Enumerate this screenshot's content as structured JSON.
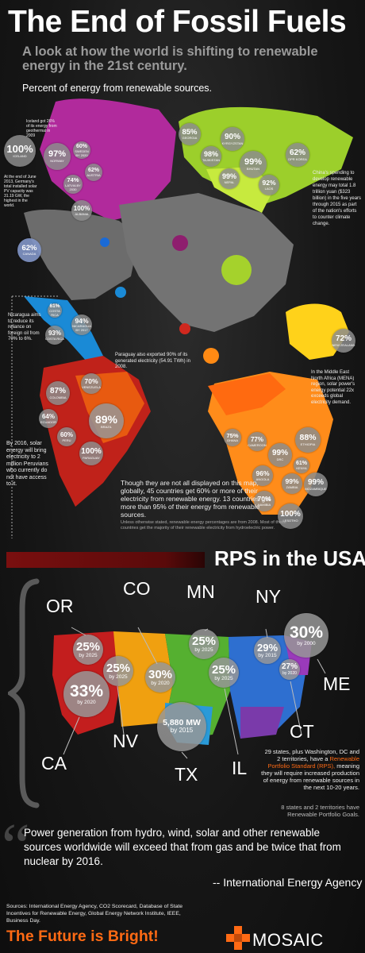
{
  "header": {
    "title": "The End of Fossil Fuels",
    "subtitle": "A look at how the world is shifting to renewable energy in the 21st century.",
    "section_label": "Percent of energy from renewable sources."
  },
  "colors": {
    "europe": "#b12a9c",
    "asia": "#b5e23a",
    "americas_central": "#1a8ad6",
    "south_america": "#d0281e",
    "africa": "#ff9a1a",
    "oceania": "#ffd21a",
    "grey_land": "#707070",
    "accent_orange": "#ff6a14"
  },
  "bubbles": [
    {
      "pct": "100%",
      "country": "ICELAND"
    },
    {
      "pct": "97%",
      "country": "NORWAY"
    },
    {
      "pct": "60%",
      "country": "SWEDEN BY 2020"
    },
    {
      "pct": "62%",
      "country": "AUSTRIA"
    },
    {
      "pct": "74%",
      "country": "LATVIA BY 2030"
    },
    {
      "pct": "100%",
      "country": "ALBANIA"
    },
    {
      "pct": "85%",
      "country": "GEORGIA"
    },
    {
      "pct": "90%",
      "country": "KYRGYZSTAN"
    },
    {
      "pct": "98%",
      "country": "TAJIKISTAN"
    },
    {
      "pct": "99%",
      "country": "BHUTAN"
    },
    {
      "pct": "99%",
      "country": "NEPAL"
    },
    {
      "pct": "62%",
      "country": "DPR KOREA"
    },
    {
      "pct": "92%",
      "country": "LAOS"
    },
    {
      "pct": "62%",
      "country": "CANADA"
    },
    {
      "pct": "61%",
      "country": "COSTA RICA"
    },
    {
      "pct": "94%",
      "country": "NICARAGUA BY 2017"
    },
    {
      "pct": "93%",
      "country": "COSTA RICA"
    },
    {
      "pct": "87%",
      "country": "COLOMBIA"
    },
    {
      "pct": "70%",
      "country": "VENEZUELA"
    },
    {
      "pct": "64%",
      "country": "ECUADOR"
    },
    {
      "pct": "60%",
      "country": "PERU"
    },
    {
      "pct": "89%",
      "country": "BRAZIL"
    },
    {
      "pct": "100%",
      "country": "PARAGUAY"
    },
    {
      "pct": "72%",
      "country": "NEW ZEALAND"
    },
    {
      "pct": "75%",
      "country": "GHANA"
    },
    {
      "pct": "77%",
      "country": "CAMEROON"
    },
    {
      "pct": "88%",
      "country": "ETHIOPIA"
    },
    {
      "pct": "99%",
      "country": "DRC"
    },
    {
      "pct": "61%",
      "country": "KENYA"
    },
    {
      "pct": "96%",
      "country": "ANGOLA"
    },
    {
      "pct": "99%",
      "country": "ZAMBIA"
    },
    {
      "pct": "99%",
      "country": "MOZAMBIQUE"
    },
    {
      "pct": "70%",
      "country": "NAMIBIA"
    },
    {
      "pct": "100%",
      "country": "LESOTHO"
    }
  ],
  "notes": {
    "iceland": "Iceland got 26% of its energy from geothermal in 2009",
    "germany": "At the end of June 2013, Germany's total installed solar PV capacity was 31.19 GW, the highest in the world.",
    "china": "China's spending to develop renewable energy may total 1.8 trillion yuan ($323 billion) in the five years through 2015 as part of the nation's efforts to counter climate change.",
    "nicaragua": "Nicaragua aims to reduce its reliance on foreign oil from 70% to 6%.",
    "paraguay": "Paraguay also exported 90% of its generated electricity (54.91 TWh) in 2008.",
    "mena": "In the Middle East North Africa (MENA) region, solar power's energy potential 22x exceeds global electricity demand.",
    "peru": "By 2016, solar energy will bring electricity to 2 million Peruvians who currently do not have access to it.",
    "global": "Though they are not all displayed on this map, globally, 45 countries get 60% or more of their electricity from renewable energy. 13 countries get more than 95% of their energy from renewable sources.",
    "footnote": "Unless otherwise stated, renewable energy percentages are from 2008. Most of these countries get the majority of their renewable electricity from hydroelectric power."
  },
  "rps": {
    "title": "RPS in the USA",
    "states": {
      "OR": "OR",
      "CO": "CO",
      "MN": "MN",
      "NY": "NY",
      "ME": "ME",
      "NV": "NV",
      "CA": "CA",
      "TX": "TX",
      "IL": "IL",
      "CT": "CT"
    },
    "bubbles": {
      "or": {
        "pct": "25%",
        "by": "by 2025"
      },
      "nv": {
        "pct": "25%",
        "by": "by 2025"
      },
      "co": {
        "pct": "30%",
        "by": "by 2020"
      },
      "mn": {
        "pct": "25%",
        "by": "by 2025"
      },
      "il": {
        "pct": "25%",
        "by": "by 2025"
      },
      "ny": {
        "pct": "29%",
        "by": "by 2015"
      },
      "me": {
        "pct": "30%",
        "by": "by 2000"
      },
      "ct": {
        "pct": "27%",
        "by": "by 2020"
      },
      "ca": {
        "pct": "33%",
        "by": "by 2020"
      },
      "tx": {
        "pct": "5,880 MW",
        "by": "by 2015"
      }
    },
    "summary_a": "29 states, plus Washington, DC and 2 territories, have a",
    "summary_link": "Renewable Portfolio Standard (RPS),",
    "summary_b": "meaning they will require increased production of energy from renewable sources in the next 10-20 years.",
    "goals": "8 states and 2 territories have Renewable Portfolio Goals."
  },
  "quote": {
    "text": "Power generation from hydro, wind, solar and other renewable sources worldwide will exceed that from gas and be twice that from nuclear by 2016.",
    "source": "-- International Energy Agency"
  },
  "footer": {
    "sources": "Sources: International Energy Agency, CO2 Scorecard, Database of State Incentives for Renewable Energy, Global Energy Network Institute, IEEE, Business Day.",
    "slogan": "The Future is Bright!",
    "brand": "MOSAIC"
  }
}
